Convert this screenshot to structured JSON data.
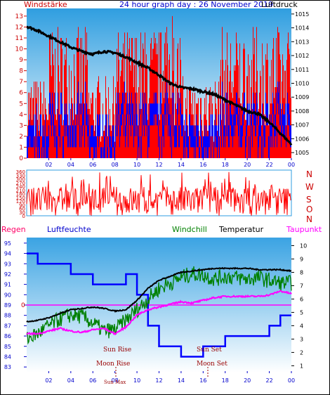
{
  "header": {
    "left_title": "Windstärke",
    "center_title": "24 hour graph day : 26 November 2019",
    "right_title": "Luftdruck"
  },
  "colors": {
    "wind_gust": "#ff0000",
    "wind_avg": "#0000ff",
    "pressure": "#000000",
    "direction": "#ff0000",
    "humidity": "#0000ff",
    "windchill": "#008000",
    "temperature": "#000000",
    "dewpoint": "#ff00ff",
    "rain_title": "#ff0066",
    "sun_moon": "#990000",
    "axis_red": "#cc0000",
    "axis_blue": "#0000cc"
  },
  "legend": {
    "rain": "Regen",
    "humidity": "Luftfeuchte",
    "windchill": "Windchill",
    "temperature": "Temperatur",
    "dewpoint": "Taupunkt"
  },
  "events": {
    "sun_rise": "Sun Rise",
    "sun_set": "Sun Set",
    "moon_rise": "Moon Rise",
    "moon_set": "Moon Set",
    "sun_max_label": "Sun Max"
  },
  "compass": [
    "N",
    "W",
    "S",
    "O",
    "N"
  ],
  "zero_label": "0",
  "chart_data": [
    {
      "type": "line",
      "title": "24 hour graph day : 26 November 2019",
      "x_ticks": [
        "02",
        "04",
        "06",
        "08",
        "10",
        "12",
        "14",
        "16",
        "18",
        "20",
        "22",
        "00"
      ],
      "y_left_label": "Windstärke",
      "y_left_ticks": [
        0,
        1,
        2,
        3,
        4,
        5,
        6,
        7,
        8,
        9,
        10,
        11,
        12,
        13
      ],
      "y_right_label": "Luftdruck",
      "y_right_ticks": [
        1005,
        1006,
        1007,
        1008,
        1009,
        1010,
        1011,
        1012,
        1013,
        1014,
        1015
      ],
      "series": [
        {
          "name": "Luftdruck",
          "x": [
            0,
            1,
            2,
            3,
            4,
            5,
            6,
            7,
            8,
            9,
            10,
            11,
            12,
            13,
            14,
            15,
            16,
            17,
            18,
            19,
            20,
            21,
            22,
            23,
            24
          ],
          "values": [
            1014.1,
            1013.8,
            1013.4,
            1013.0,
            1012.6,
            1012.3,
            1012.1,
            1012.3,
            1012.2,
            1011.9,
            1011.5,
            1011.1,
            1010.6,
            1010.0,
            1009.7,
            1009.6,
            1009.4,
            1009.2,
            1008.8,
            1008.4,
            1008.0,
            1007.8,
            1007.2,
            1006.4,
            1005.6
          ]
        }
      ]
    },
    {
      "type": "line",
      "title": "",
      "y_ticks": [
        0,
        30,
        60,
        90,
        120,
        150,
        180,
        210,
        240,
        270,
        300,
        330,
        360
      ],
      "series": [
        {
          "name": "",
          "values": []
        }
      ]
    },
    {
      "type": "line",
      "title": "",
      "x_ticks": [
        "02",
        "04",
        "06",
        "08",
        "10",
        "12",
        "14",
        "16",
        "18",
        "20",
        "22",
        "00"
      ],
      "y_left_label": "Luftfeuchte",
      "y_left_ticks": [
        83,
        84,
        85,
        86,
        87,
        88,
        89,
        90,
        91,
        92,
        93,
        94,
        95
      ],
      "y_right_ticks": [
        1,
        2,
        3,
        4,
        5,
        6,
        7,
        8,
        9,
        10
      ],
      "series": [
        {
          "name": "Luftfeuchte",
          "x": [
            0,
            1,
            2,
            3,
            4,
            5,
            6,
            7,
            8,
            9,
            10,
            11,
            12,
            13,
            14,
            15,
            16,
            17,
            18,
            19,
            20,
            21,
            22,
            23,
            24
          ],
          "values": [
            94,
            93,
            93,
            93,
            92,
            92,
            91,
            91,
            91,
            92,
            90,
            87,
            85,
            85,
            84,
            84,
            85,
            85,
            86,
            86,
            86,
            86,
            87,
            88,
            88
          ]
        },
        {
          "name": "Temperatur",
          "x": [
            0,
            1,
            2,
            3,
            4,
            5,
            6,
            7,
            8,
            9,
            10,
            11,
            12,
            13,
            14,
            15,
            16,
            17,
            18,
            19,
            20,
            21,
            22,
            23,
            24
          ],
          "values": [
            4.3,
            4.4,
            4.6,
            4.9,
            5.2,
            5.3,
            5.4,
            5.3,
            5.1,
            5.2,
            5.9,
            6.8,
            7.4,
            7.7,
            8.0,
            8.1,
            8.2,
            8.3,
            8.3,
            8.3,
            8.3,
            8.2,
            8.2,
            8.2,
            8.1
          ]
        },
        {
          "name": "Windchill",
          "x": [
            0,
            1,
            2,
            3,
            4,
            5,
            6,
            7,
            8,
            9,
            10,
            11,
            12,
            13,
            14,
            15,
            16,
            17,
            18,
            19,
            20,
            21,
            22,
            23,
            24
          ],
          "values": [
            3.0,
            3.4,
            4.0,
            4.5,
            4.8,
            4.7,
            4.2,
            3.6,
            3.7,
            4.4,
            5.2,
            6.0,
            6.8,
            7.2,
            7.6,
            7.9,
            7.8,
            7.5,
            7.7,
            7.6,
            7.5,
            7.6,
            7.4,
            7.2,
            7.2
          ]
        },
        {
          "name": "Taupunkt",
          "x": [
            0,
            1,
            2,
            3,
            4,
            5,
            6,
            7,
            8,
            9,
            10,
            11,
            12,
            13,
            14,
            15,
            16,
            17,
            18,
            19,
            20,
            21,
            22,
            23,
            24
          ],
          "values": [
            3.4,
            3.4,
            3.6,
            3.8,
            3.6,
            3.5,
            3.7,
            3.8,
            3.4,
            3.9,
            4.8,
            5.2,
            5.4,
            5.6,
            5.8,
            5.7,
            5.9,
            6.1,
            6.2,
            6.2,
            6.2,
            6.2,
            6.3,
            6.6,
            6.4
          ]
        }
      ]
    }
  ]
}
